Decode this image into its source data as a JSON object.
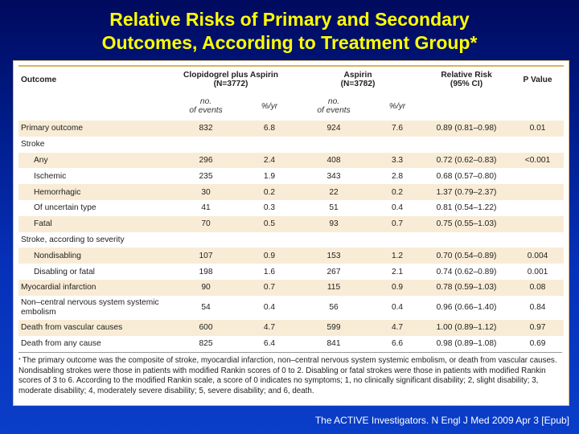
{
  "slide": {
    "title_line1": "Relative Risks of Primary and Secondary",
    "title_line2": "Outcomes, According to Treatment Group*",
    "citation": "The ACTIVE Investigators. N Engl J Med 2009 Apr 3 [Epub]"
  },
  "table": {
    "header": {
      "outcome": "Outcome",
      "clop_line1": "Clopidogrel plus Aspirin",
      "clop_line2": "(N=3772)",
      "asp_line1": "Aspirin",
      "asp_line2": "(N=3782)",
      "rr_line1": "Relative Risk",
      "rr_line2": "(95% CI)",
      "p": "P Value"
    },
    "subheader": {
      "events_line1": "no.",
      "events_line2": "of events",
      "rate": "%/yr"
    },
    "rows": [
      {
        "label": "Primary outcome",
        "c_n": "832",
        "c_r": "6.8",
        "a_n": "924",
        "a_r": "7.6",
        "rr": "0.89 (0.81–0.98)",
        "p": "0.01"
      },
      {
        "label": "Stroke",
        "c_n": "",
        "c_r": "",
        "a_n": "",
        "a_r": "",
        "rr": "",
        "p": ""
      },
      {
        "label": "Any",
        "c_n": "296",
        "c_r": "2.4",
        "a_n": "408",
        "a_r": "3.3",
        "rr": "0.72 (0.62–0.83)",
        "p": "<0.001"
      },
      {
        "label": "Ischemic",
        "c_n": "235",
        "c_r": "1.9",
        "a_n": "343",
        "a_r": "2.8",
        "rr": "0.68 (0.57–0.80)",
        "p": ""
      },
      {
        "label": "Hemorrhagic",
        "c_n": "30",
        "c_r": "0.2",
        "a_n": "22",
        "a_r": "0.2",
        "rr": "1.37 (0.79–2.37)",
        "p": ""
      },
      {
        "label": "Of uncertain type",
        "c_n": "41",
        "c_r": "0.3",
        "a_n": "51",
        "a_r": "0.4",
        "rr": "0.81 (0.54–1.22)",
        "p": ""
      },
      {
        "label": "Fatal",
        "c_n": "70",
        "c_r": "0.5",
        "a_n": "93",
        "a_r": "0.7",
        "rr": "0.75 (0.55–1.03)",
        "p": ""
      },
      {
        "label": "Stroke, according to severity",
        "c_n": "",
        "c_r": "",
        "a_n": "",
        "a_r": "",
        "rr": "",
        "p": ""
      },
      {
        "label": "Nondisabling",
        "c_n": "107",
        "c_r": "0.9",
        "a_n": "153",
        "a_r": "1.2",
        "rr": "0.70 (0.54–0.89)",
        "p": "0.004"
      },
      {
        "label": "Disabling or fatal",
        "c_n": "198",
        "c_r": "1.6",
        "a_n": "267",
        "a_r": "2.1",
        "rr": "0.74 (0.62–0.89)",
        "p": "0.001"
      },
      {
        "label": "Myocardial infarction",
        "c_n": "90",
        "c_r": "0.7",
        "a_n": "115",
        "a_r": "0.9",
        "rr": "0.78 (0.59–1.03)",
        "p": "0.08"
      },
      {
        "label": "Non–central nervous system systemic embolism",
        "c_n": "54",
        "c_r": "0.4",
        "a_n": "56",
        "a_r": "0.4",
        "rr": "0.96 (0.66–1.40)",
        "p": "0.84"
      },
      {
        "label": "Death from vascular causes",
        "c_n": "600",
        "c_r": "4.7",
        "a_n": "599",
        "a_r": "4.7",
        "rr": "1.00 (0.89–1.12)",
        "p": "0.97"
      },
      {
        "label": "Death from any cause",
        "c_n": "825",
        "c_r": "6.4",
        "a_n": "841",
        "a_r": "6.6",
        "rr": "0.98 (0.89–1.08)",
        "p": "0.69"
      }
    ]
  },
  "footnote": {
    "mark": "*",
    "text": "The primary outcome was the composite of stroke, myocardial infarction, non–central nervous system systemic embolism, or death from vascular causes. Nondisabling strokes were those in patients with modified Rankin scores of 0 to 2. Disabling or fatal strokes were those in patients with modified Rankin scores of 3 to 6. According to the modified Rankin scale, a score of 0 indicates no symptoms; 1, no clinically significant disability; 2, slight disability; 3, moderate disability; 4, moderately severe disability; 5, severe disability; and 6, death."
  },
  "colors": {
    "title": "#ffff00",
    "row_shade": "#f9ecd6",
    "rule": "#d6b55e"
  }
}
